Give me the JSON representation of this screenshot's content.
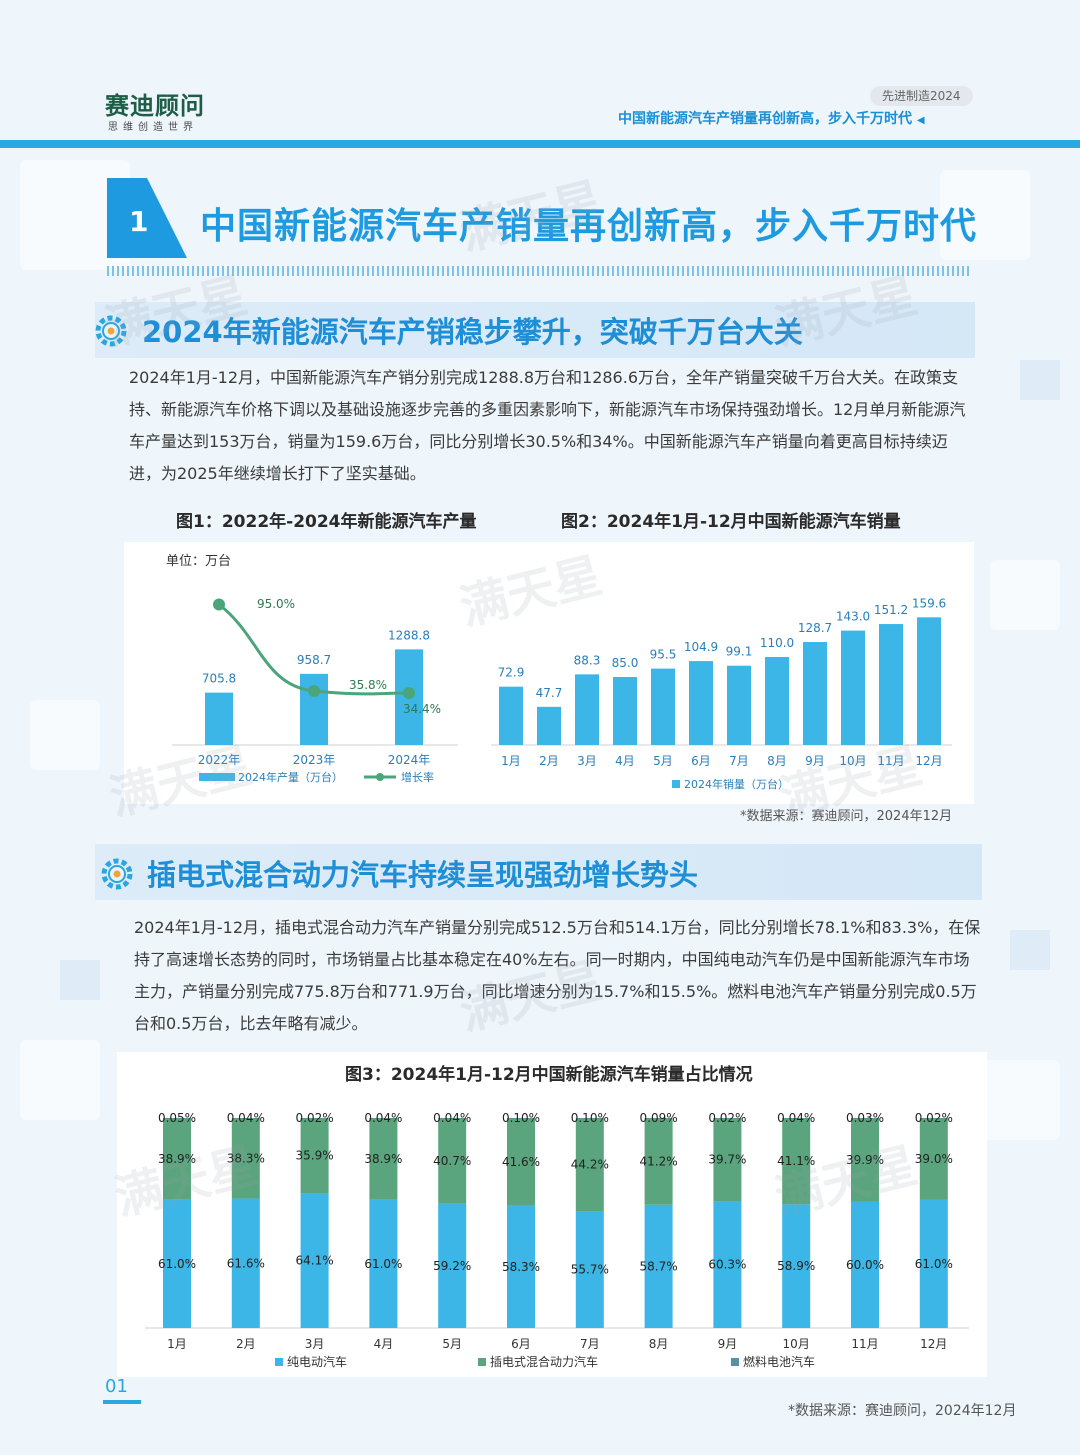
{
  "header": {
    "logo_main": "赛迪顾问",
    "logo_sub": "思维创造世界",
    "tag": "先进制造2024",
    "title": "中国新能源汽车产销量再创新高，步入千万时代"
  },
  "section": {
    "number": "1",
    "title": "中国新能源汽车产销量再创新高，步入千万时代"
  },
  "watermark": "满天星",
  "sub1": {
    "title": "2024年新能源汽车产销稳步攀升，突破千万台大关",
    "paragraph": "2024年1月-12月，中国新能源汽车产销分别完成1288.8万台和1286.6万台，全年产销量突破千万台大关。在政策支持、新能源汽车价格下调以及基础设施逐步完善的多重因素影响下，新能源汽车市场保持强劲增长。12月单月新能源汽车产量达到153万台，销量为159.6万台，同比分别增长30.5%和34%。中国新能源汽车产销量向着更高目标持续迈进，为2025年继续增长打下了坚实基础。"
  },
  "sub2": {
    "title": "插电式混合动力汽车持续呈现强劲增长势头",
    "paragraph": "2024年1月-12月，插电式混合动力汽车产销量分别完成512.5万台和514.1万台，同比分别增长78.1%和83.3%，在保持了高速增长态势的同时，市场销量占比基本稳定在40%左右。同一时期内，中国纯电动汽车仍是中国新能源汽车市场主力，产销量分别完成775.8万台和771.9万台，同比增速分别为15.7%和15.5%。燃料电池汽车产销量分别完成0.5万台和0.5万台，比去年略有减少。"
  },
  "source1": "*数据来源：赛迪顾问，2024年12月",
  "source2": "*数据来源：赛迪顾问，2024年12月",
  "page_number": "01",
  "colors": {
    "bar": "#3bb6e6",
    "line": "#4aa57a",
    "green": "#5aa57e",
    "fuel": "#5b8fa8",
    "accent": "#1e9be0"
  },
  "chart_data": [
    {
      "type": "bar",
      "title": "图1：2022年-2024年新能源汽车产量",
      "unit": "单位：万台",
      "categories": [
        "2022年",
        "2023年",
        "2024年"
      ],
      "series": [
        {
          "name": "2024年产量（万台）",
          "type": "bar",
          "values": [
            705.8,
            958.7,
            1288.8
          ]
        },
        {
          "name": "增长率",
          "type": "line",
          "values": [
            95.0,
            35.8,
            34.4
          ],
          "labels": [
            "95.0%",
            "35.8%",
            "34.4%"
          ]
        }
      ]
    },
    {
      "type": "bar",
      "title": "图2：2024年1月-12月中国新能源汽车销量",
      "categories": [
        "1月",
        "2月",
        "3月",
        "4月",
        "5月",
        "6月",
        "7月",
        "8月",
        "9月",
        "10月",
        "11月",
        "12月"
      ],
      "series": [
        {
          "name": "2024年销量（万台）",
          "values": [
            72.9,
            47.7,
            88.3,
            85.0,
            95.5,
            104.9,
            99.1,
            110.0,
            128.7,
            143.0,
            151.2,
            159.6
          ],
          "labels": [
            "72.9",
            "47.7",
            "88.3",
            "85.0",
            "95.5",
            "104.9",
            "99.1",
            "110.0",
            "128.7",
            "143.0",
            "151.2",
            "159.6"
          ]
        }
      ]
    },
    {
      "type": "bar",
      "stacked": true,
      "title": "图3：2024年1月-12月中国新能源汽车销量占比情况",
      "categories": [
        "1月",
        "2月",
        "3月",
        "4月",
        "5月",
        "6月",
        "7月",
        "8月",
        "9月",
        "10月",
        "11月",
        "12月"
      ],
      "series": [
        {
          "name": "纯电动汽车",
          "values": [
            61.0,
            61.6,
            64.1,
            61.0,
            59.2,
            58.3,
            55.7,
            58.7,
            60.3,
            58.9,
            60.0,
            61.0
          ],
          "labels": [
            "61.0%",
            "61.6%",
            "64.1%",
            "61.0%",
            "59.2%",
            "58.3%",
            "55.7%",
            "58.7%",
            "60.3%",
            "58.9%",
            "60.0%",
            "61.0%"
          ]
        },
        {
          "name": "插电式混合动力汽车",
          "values": [
            38.9,
            38.3,
            35.9,
            38.9,
            40.7,
            41.6,
            44.2,
            41.2,
            39.7,
            41.1,
            39.9,
            39.0
          ],
          "labels": [
            "38.9%",
            "38.3%",
            "35.9%",
            "38.9%",
            "40.7%",
            "41.6%",
            "44.2%",
            "41.2%",
            "39.7%",
            "41.1%",
            "39.9%",
            "39.0%"
          ]
        },
        {
          "name": "燃料电池汽车",
          "values": [
            0.05,
            0.04,
            0.02,
            0.04,
            0.04,
            0.1,
            0.1,
            0.09,
            0.02,
            0.04,
            0.03,
            0.02
          ],
          "labels": [
            "0.05%",
            "0.04%",
            "0.02%",
            "0.04%",
            "0.04%",
            "0.10%",
            "0.10%",
            "0.09%",
            "0.02%",
            "0.04%",
            "0.03%",
            "0.02%"
          ]
        }
      ]
    }
  ]
}
